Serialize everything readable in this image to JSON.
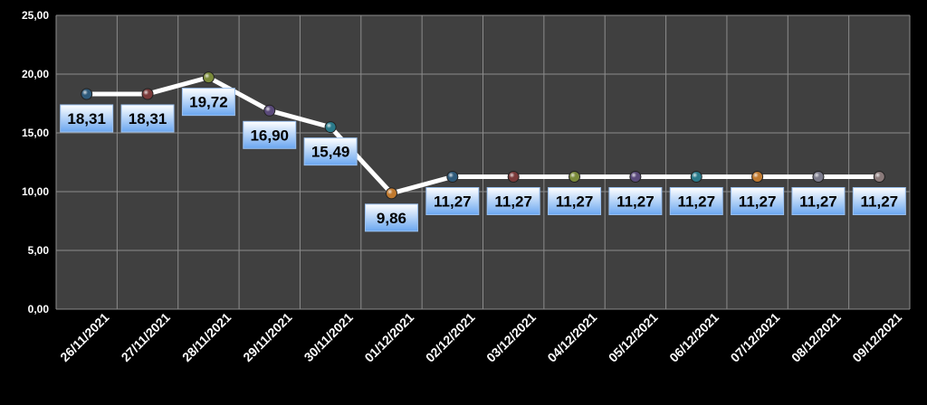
{
  "chart_data": {
    "type": "line",
    "title": "",
    "xlabel": "",
    "ylabel": "",
    "ylim": [
      0,
      25
    ],
    "yticks": [
      "0,00",
      "5,00",
      "10,00",
      "15,00",
      "20,00",
      "25,00"
    ],
    "ytick_values": [
      0,
      5,
      10,
      15,
      20,
      25
    ],
    "grid": true,
    "legend": "none",
    "categories": [
      "26/11/2021",
      "27/11/2021",
      "28/11/2021",
      "29/11/2021",
      "30/11/2021",
      "01/12/2021",
      "02/12/2021",
      "03/12/2021",
      "04/12/2021",
      "05/12/2021",
      "06/12/2021",
      "07/12/2021",
      "08/12/2021",
      "09/12/2021"
    ],
    "values": [
      18.31,
      18.31,
      19.72,
      16.9,
      15.49,
      9.86,
      11.27,
      11.27,
      11.27,
      11.27,
      11.27,
      11.27,
      11.27,
      11.27
    ],
    "value_labels": [
      "18,31",
      "18,31",
      "19,72",
      "16,90",
      "15,49",
      "9,86",
      "11,27",
      "11,27",
      "11,27",
      "11,27",
      "11,27",
      "11,27",
      "11,27",
      "11,27"
    ],
    "marker_colors": [
      "#2f5a7a",
      "#7a3a3a",
      "#7a8a3a",
      "#5a4a7a",
      "#2a7a8a",
      "#c07a30",
      "#2f5a7a",
      "#7a3a3a",
      "#7a8a3a",
      "#5a4a7a",
      "#2a7a8a",
      "#c07a30",
      "#7a7a8a",
      "#8a7a7a"
    ],
    "colors": {
      "background": "#000000",
      "plot_area": "#404040",
      "gridline": "#8c8c8c",
      "line": "#ffffff",
      "label_bg_top": "#ffffff",
      "label_bg_bottom": "#6aa6f0",
      "label_text": "#000000",
      "axis_text": "#ffffff"
    }
  }
}
